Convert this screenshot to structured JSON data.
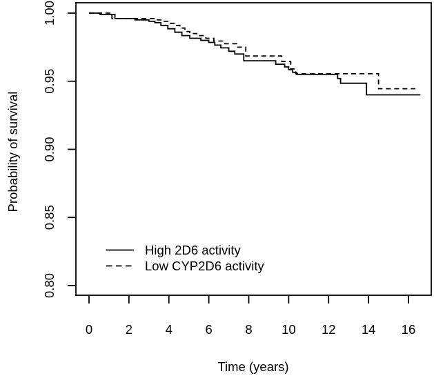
{
  "colors": {
    "foreground": "#000000",
    "background": "#ffffff"
  },
  "chart_data": {
    "type": "line",
    "subtype": "kaplan-meier-step",
    "title": "",
    "xlabel": "Time (years)",
    "ylabel": "Probability of survival",
    "xlim": [
      -0.657,
      17.14
    ],
    "ylim": [
      0.7929,
      1.0076
    ],
    "xticks": [
      0,
      2,
      4,
      6,
      8,
      10,
      12,
      14,
      16
    ],
    "xtick_labels": [
      "0",
      "2",
      "4",
      "6",
      "8",
      "10",
      "12",
      "14",
      "16"
    ],
    "yticks": [
      0.8,
      0.85,
      0.9,
      0.95,
      1.0
    ],
    "ytick_labels": [
      "0.80",
      "0.85",
      "0.90",
      "0.95",
      "1.00"
    ],
    "grid": false,
    "legend_position": "inside-lower-left",
    "series": [
      {
        "name": "High 2D6 activity",
        "style": "solid",
        "step": true,
        "color": "#000000",
        "x": [
          0,
          0.55,
          1.3,
          2.3,
          3.0,
          3.3,
          3.6,
          3.95,
          4.3,
          4.65,
          5.05,
          5.6,
          6.0,
          6.3,
          6.6,
          7.0,
          7.3,
          7.75,
          9.35,
          9.8,
          10.0,
          10.2,
          10.4,
          12.45,
          12.6,
          13.9,
          16.6
        ],
        "y": [
          1.0,
          0.999,
          0.996,
          0.995,
          0.994,
          0.993,
          0.991,
          0.9885,
          0.986,
          0.9835,
          0.9815,
          0.98,
          0.9785,
          0.9765,
          0.9745,
          0.972,
          0.97,
          0.965,
          0.9625,
          0.9605,
          0.9585,
          0.9565,
          0.955,
          0.952,
          0.9485,
          0.94,
          0.94
        ]
      },
      {
        "name": "Low CYP2D6 activity",
        "style": "dashed",
        "step": true,
        "color": "#000000",
        "x": [
          0,
          1.15,
          3.35,
          3.6,
          3.95,
          4.35,
          4.55,
          4.8,
          5.05,
          5.4,
          5.85,
          6.25,
          6.8,
          7.4,
          7.85,
          9.65,
          10.1,
          10.35,
          14.5,
          16.35
        ],
        "y": [
          1.0,
          0.996,
          0.995,
          0.994,
          0.9925,
          0.991,
          0.989,
          0.9865,
          0.985,
          0.9835,
          0.9815,
          0.9795,
          0.9775,
          0.975,
          0.9685,
          0.9645,
          0.959,
          0.9555,
          0.9445,
          0.9445
        ]
      }
    ]
  }
}
